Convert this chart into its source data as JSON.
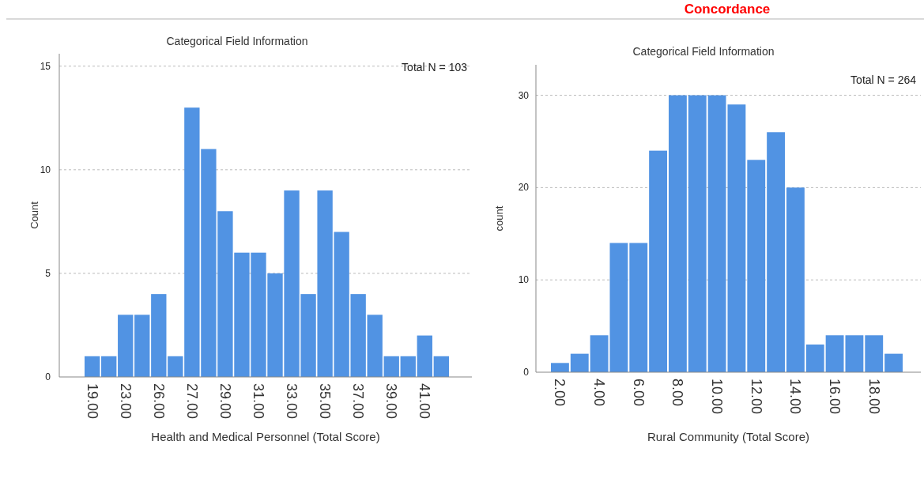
{
  "chart_data": [
    {
      "type": "bar",
      "title": "Categorical Field Information",
      "xlabel": "Health and Medical Personnel (Total Score)",
      "ylabel": "Count",
      "categories": [
        "19.00",
        null,
        "23.00",
        null,
        "26.00",
        null,
        "27.00",
        null,
        "29.00",
        null,
        "31.00",
        null,
        "33.00",
        null,
        "35.00",
        null,
        "37.00",
        null,
        "39.00",
        null,
        "41.00",
        null
      ],
      "values": [
        1,
        1,
        3,
        3,
        4,
        1,
        13,
        11,
        8,
        6,
        6,
        5,
        9,
        4,
        9,
        7,
        4,
        3,
        1,
        1,
        2,
        1
      ],
      "color": "#5193e3",
      "ylim": [
        0,
        15.6
      ],
      "yticks": [
        0,
        5,
        10,
        15
      ],
      "grid": "y",
      "annotations": [
        "Total N =  103"
      ]
    },
    {
      "type": "bar",
      "title": "Categorical Field Information",
      "xlabel": "Rural Community (Total Score)",
      "ylabel": "count",
      "categories": [
        "2.00",
        null,
        "4.00",
        null,
        "6.00",
        null,
        "8.00",
        null,
        "10.00",
        null,
        "12.00",
        null,
        "14.00",
        null,
        "16.00",
        null,
        "18.00",
        null
      ],
      "values": [
        1,
        2,
        4,
        14,
        14,
        24,
        30,
        30,
        30,
        29,
        23,
        26,
        20,
        3,
        4,
        4,
        4,
        2
      ],
      "color": "#5193e3",
      "ylim": [
        0,
        33.3
      ],
      "yticks": [
        0,
        10,
        20,
        30
      ],
      "grid": "y",
      "annotations": [
        "Total N =  264",
        "Concordance"
      ]
    }
  ]
}
